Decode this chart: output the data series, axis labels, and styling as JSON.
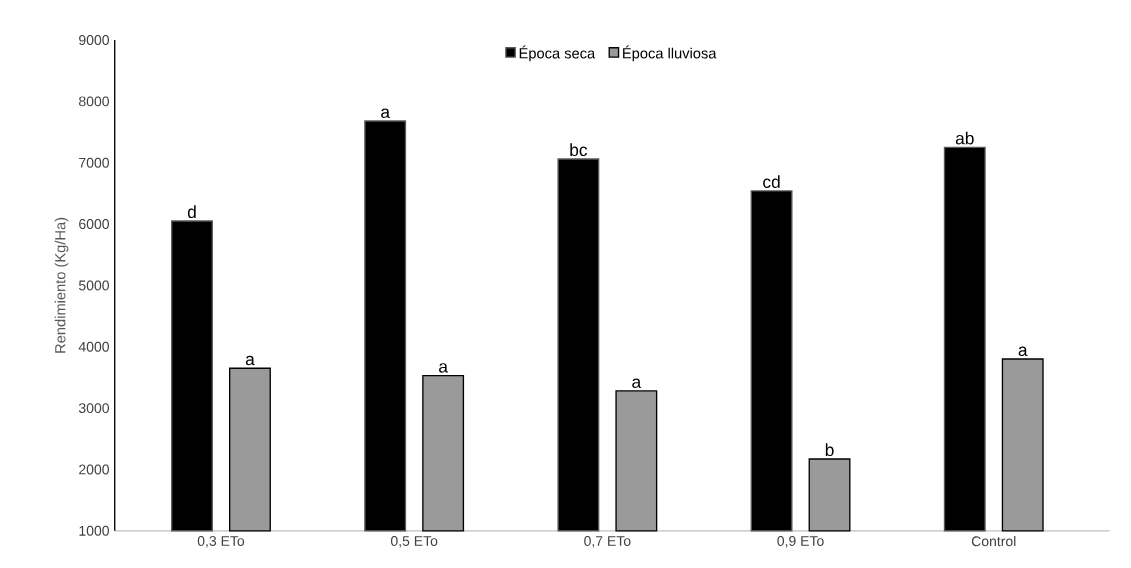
{
  "chart_data": {
    "type": "bar",
    "ylabel": "Rendimiento (Kg/Ha)",
    "categories": [
      "0,3 ETo",
      "0,5 ETo",
      "0,7 ETo",
      "0,9 ETo",
      "Control"
    ],
    "series": [
      {
        "name": "Época seca",
        "color": "#000000",
        "values": [
          6050,
          7680,
          7060,
          6540,
          7250
        ],
        "value_labels": [
          "d",
          "a",
          "bc",
          "cd",
          "ab"
        ]
      },
      {
        "name": "Época lluviosa",
        "color": "#9a9a9a",
        "values": [
          3650,
          3530,
          3280,
          2170,
          3800
        ],
        "value_labels": [
          "a",
          "a",
          "a",
          "b",
          "a"
        ]
      }
    ],
    "ylim": [
      1000,
      9000
    ],
    "yticks": [
      1000,
      2000,
      3000,
      4000,
      5000,
      6000,
      7000,
      8000,
      9000
    ],
    "grid": false,
    "legend": "top"
  }
}
